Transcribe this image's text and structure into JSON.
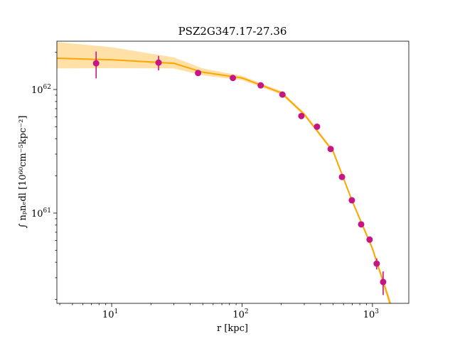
{
  "chart_data": {
    "type": "scatter",
    "title": "PSZ2G347.17-27.36",
    "xlabel": "r [kpc]",
    "ylabel": "∫ nₚnₑdl [10⁶⁰cm⁻⁵kpc⁻²]",
    "xscale": "log",
    "yscale": "log",
    "xlim": [
      3.8,
      1900
    ],
    "ylim": [
      1.86e+60,
      2.46e+62
    ],
    "xticks": [
      {
        "value": 10,
        "label": "10",
        "exp": "1"
      },
      {
        "value": 100,
        "label": "10",
        "exp": "2"
      },
      {
        "value": 1000,
        "label": "10",
        "exp": "3"
      }
    ],
    "yticks": [
      {
        "value": 1e+61,
        "label": "10",
        "exp": "61"
      },
      {
        "value": 1e+62,
        "label": "10",
        "exp": "62"
      }
    ],
    "xminor": [
      4,
      5,
      6,
      7,
      8,
      9,
      20,
      30,
      40,
      50,
      60,
      70,
      80,
      90,
      200,
      300,
      400,
      500,
      600,
      700,
      800,
      900
    ],
    "yminor": [
      2e+60,
      3e+60,
      4e+60,
      5e+60,
      6e+60,
      7e+60,
      8e+60,
      9e+60,
      2e+61,
      3e+61,
      4e+61,
      5e+61,
      6e+61,
      7e+61,
      8e+61,
      9e+61,
      2e+62
    ],
    "series": [
      {
        "type": "band",
        "color": "#ffa500",
        "x": [
          3.8,
          10,
          30,
          50,
          100,
          200,
          300,
          500,
          700,
          1000,
          1300,
          1400
        ],
        "upper": [
          2.42e+62,
          2.2e+62,
          1.82e+62,
          1.48e+62,
          1.29e+62,
          9.7e+61,
          6.5e+61,
          3.25e+61,
          1.29e+61,
          5.4e+60,
          2.35e+60,
          1.85e+60
        ],
        "lower": [
          1.48e+62,
          1.49e+62,
          1.48e+62,
          1.3e+62,
          1.19e+62,
          9.1e+61,
          6.1e+61,
          3.05e+61,
          1.21e+61,
          4.95e+60,
          2.05e+60,
          1.55e+60
        ]
      },
      {
        "type": "line",
        "color": "#ffa500",
        "x": [
          3.8,
          10,
          30,
          50,
          100,
          200,
          300,
          500,
          700,
          1000,
          1300,
          1400
        ],
        "y": [
          1.79e+62,
          1.74e+62,
          1.63e+62,
          1.38e+62,
          1.24e+62,
          9.4e+61,
          6.3e+61,
          3.15e+61,
          1.25e+61,
          5.16e+60,
          2.2e+60,
          1.7e+60
        ]
      },
      {
        "type": "errorbar",
        "color": "#c71585",
        "x": [
          7.6,
          22.9,
          46,
          85,
          139,
          204,
          285,
          376,
          478,
          584,
          695,
          819,
          951,
          1078,
          1208
        ],
        "y": [
          1.63e+62,
          1.65e+62,
          1.36e+62,
          1.24e+62,
          1.08e+62,
          9.1e+61,
          6.1e+61,
          5e+61,
          3.3e+61,
          1.96e+61,
          1.27e+61,
          8.1e+60,
          6.1e+60,
          3.9e+60,
          2.77e+60
        ],
        "errors": [
          4e+61,
          2.2e+61,
          5e+60,
          3e+60,
          3e+60,
          2.5e+60,
          2e+60,
          1.5e+60,
          1e+60,
          7e+59,
          5e+59,
          4e+59,
          3e+59,
          4e+59,
          6e+59
        ]
      }
    ]
  }
}
